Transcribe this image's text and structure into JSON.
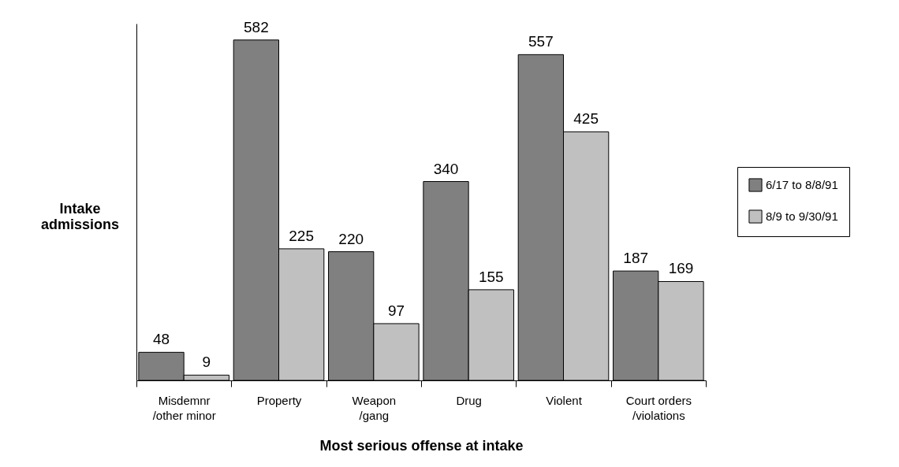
{
  "chart_data": {
    "type": "bar",
    "xlabel": "Most serious offense at intake",
    "ylabel": "Intake admissions",
    "categories": [
      "Misdemnr\n/other minor",
      "Property",
      "Weapon\n/gang",
      "Drug",
      "Violent",
      "Court orders\n/violations"
    ],
    "series": [
      {
        "name": "6/17 to 8/8/91",
        "color": "#808080",
        "values": [
          48,
          582,
          220,
          340,
          557,
          187
        ]
      },
      {
        "name": "8/9 to 9/30/91",
        "color": "#c0c0c0",
        "values": [
          9,
          225,
          97,
          155,
          425,
          169
        ]
      }
    ],
    "ylim": [
      0,
      610
    ],
    "data_labels": true,
    "legend": "right"
  }
}
